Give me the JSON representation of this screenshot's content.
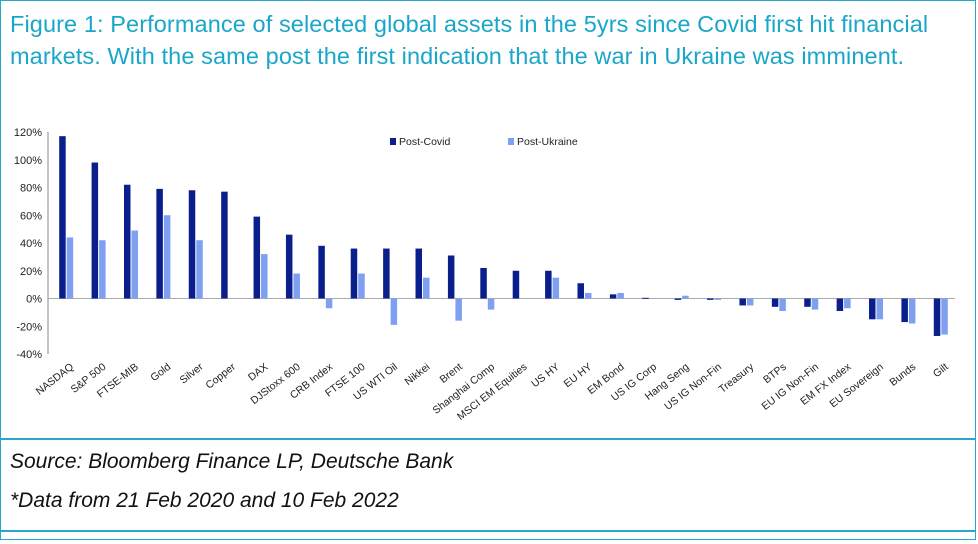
{
  "title": "Figure 1: Performance of selected global assets in the 5yrs since Covid first hit financial markets. With the same post the first indication that the war in Ukraine was imminent.",
  "source": "Source: Bloomberg Finance LP, Deutsche Bank",
  "note": "*Data from 21 Feb 2020 and 10 Feb 2022",
  "colors": {
    "post_covid": "#0b1f8c",
    "post_ukraine": "#7f9ff0",
    "accent": "#1aa6c9"
  },
  "chart_data": {
    "type": "bar",
    "categories": [
      "NASDAQ",
      "S&P 500",
      "FTSE-MIB",
      "Gold",
      "Silver",
      "Copper",
      "DAX",
      "DJStoxx 600",
      "CRB Index",
      "FTSE 100",
      "US WTI Oil",
      "Nikkei",
      "Brent",
      "Shanghai Comp",
      "MSCI EM Equities",
      "US HY",
      "EU HY",
      "EM Bond",
      "US IG Corp",
      "Hang Seng",
      "US IG Non-Fin",
      "Treasury",
      "BTPs",
      "EU IG Non-Fin",
      "EM FX Index",
      "EU Sovereign",
      "Bunds",
      "Gilt"
    ],
    "series": [
      {
        "name": "Post-Covid",
        "values": [
          117,
          98,
          82,
          79,
          78,
          77,
          59,
          46,
          38,
          36,
          36,
          36,
          31,
          22,
          20,
          20,
          11,
          3,
          0.5,
          -1,
          -1,
          -5,
          -6,
          -6,
          -9,
          -15,
          -17,
          -27
        ]
      },
      {
        "name": "Post-Ukraine",
        "values": [
          44,
          42,
          49,
          60,
          42,
          0,
          32,
          18,
          -7,
          18,
          -19,
          15,
          -16,
          -8,
          0,
          15,
          4,
          4,
          0,
          2,
          -1,
          -5,
          -9,
          -8,
          -7,
          -15,
          -18,
          -26
        ]
      }
    ],
    "ylim": [
      -40,
      120
    ],
    "yticks": [
      "120%",
      "100%",
      "80%",
      "60%",
      "40%",
      "20%",
      "0%",
      "-20%",
      "-40%"
    ],
    "ytick_values": [
      120,
      100,
      80,
      60,
      40,
      20,
      0,
      -20,
      -40
    ],
    "legend_position": "top-center",
    "grid": false
  }
}
